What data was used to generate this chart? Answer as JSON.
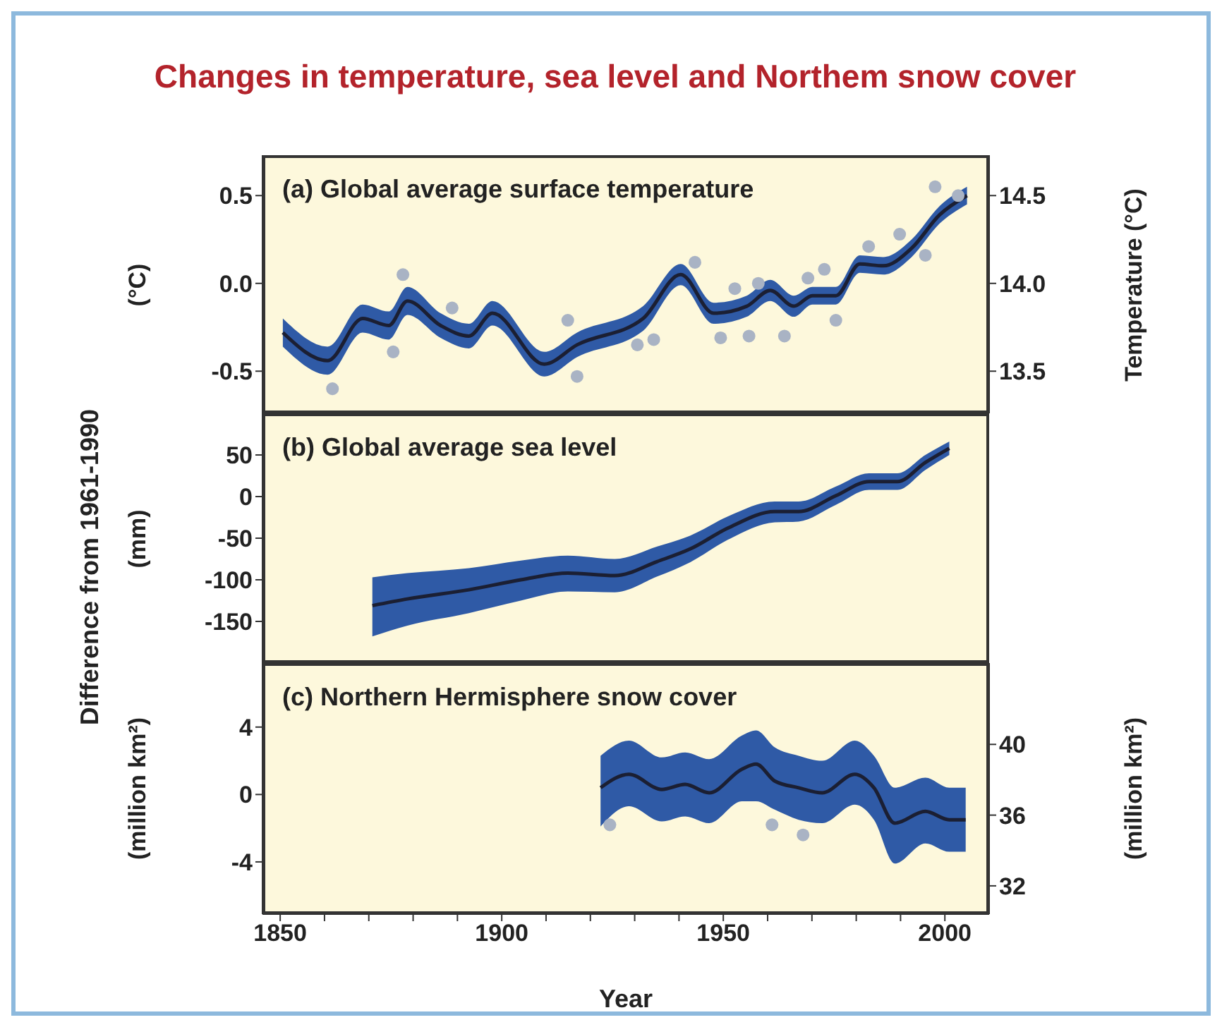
{
  "chart_data": [
    {
      "type": "line",
      "title": "Changes in temperature, sea level and Northem snow cover",
      "subtitle": "(a) Global average surface temperature",
      "ylabel": "(°C)",
      "y2label": "Temperature (°C)",
      "tick_labels": "y",
      "xlim": [
        1846,
        2010
      ],
      "xticks": [
        1850,
        {
          "value": 1860,
          "label": null
        },
        {
          "value": 1870,
          "label": null
        },
        {
          "value": 1880,
          "label": null
        },
        {
          "value": 1890,
          "label": null
        },
        1900,
        {
          "value": 1910,
          "label": null
        },
        {
          "value": 1920,
          "label": null
        },
        {
          "value": 1930,
          "label": null
        },
        {
          "value": 1940,
          "label": null
        },
        1950,
        {
          "value": 1960,
          "label": null
        },
        {
          "value": 1970,
          "label": null
        },
        {
          "value": 1980,
          "label": null
        },
        {
          "value": 1990,
          "label": null
        },
        2000
      ],
      "ylim": [
        -0.74,
        0.73
      ],
      "yticks": [
        {
          "value": 0.5,
          "label": "0.5"
        },
        {
          "value": 0,
          "label": "0.0"
        },
        {
          "value": -0.5,
          "label": "-0.5"
        }
      ],
      "y2lim": [
        13.26,
        14.73
      ],
      "y2ticks": [
        {
          "value": 14.5,
          "label": "14.5"
        },
        {
          "value": 14,
          "label": "14.0"
        },
        {
          "value": 13.5,
          "label": "13.5"
        }
      ],
      "series": [
        {
          "type": "line",
          "color": "#1b1f33",
          "x": [
            1850.6,
            1860.7,
            1868.6,
            1874.5,
            1878.7,
            1886.2,
            1892.6,
            1897.9,
            1909.6,
            1917,
            1931.9,
            1940.4,
            1947.8,
            1955.3,
            1960.6,
            1965.9,
            1970.1,
            1975.4,
            1980.8,
            1986.1,
            1992.5,
            1998.8,
            2005
          ],
          "values": [
            -0.28,
            -0.44,
            -0.2,
            -0.24,
            -0.1,
            -0.24,
            -0.3,
            -0.17,
            -0.46,
            -0.35,
            -0.2,
            0.05,
            -0.17,
            -0.13,
            -0.04,
            -0.13,
            -0.07,
            -0.07,
            0.11,
            0.1,
            0.2,
            0.39,
            0.5
          ],
          "lower": [
            -0.36,
            -0.52,
            -0.28,
            -0.32,
            -0.18,
            -0.31,
            -0.37,
            -0.24,
            -0.53,
            -0.42,
            -0.27,
            -0.01,
            -0.23,
            -0.19,
            -0.1,
            -0.19,
            -0.12,
            -0.12,
            0.06,
            0.05,
            0.15,
            0.34,
            0.45
          ],
          "upper": [
            -0.2,
            -0.36,
            -0.12,
            -0.16,
            -0.02,
            -0.17,
            -0.23,
            -0.1,
            -0.39,
            -0.28,
            -0.13,
            0.11,
            -0.11,
            -0.07,
            0.02,
            -0.07,
            -0.02,
            -0.02,
            0.16,
            0.15,
            0.25,
            0.44,
            0.55
          ]
        },
        {
          "type": "scatter",
          "color": "#a9b3c4",
          "x": [
            1861.8,
            1875.5,
            1877.7,
            1888.8,
            1914.9,
            1917,
            1930.6,
            1934.3,
            1943.6,
            1949.4,
            1952.6,
            1955.8,
            1957.9,
            1963.8,
            1969.1,
            1972.8,
            1975.4,
            1982.8,
            1989.8,
            1995.6,
            1997.8,
            2003
          ],
          "values": [
            -0.6,
            -0.39,
            0.05,
            -0.14,
            -0.21,
            -0.53,
            -0.35,
            -0.32,
            0.12,
            -0.31,
            -0.03,
            -0.3,
            0.0,
            -0.3,
            0.03,
            0.08,
            -0.21,
            0.21,
            0.28,
            0.16,
            0.55,
            0.5
          ]
        }
      ]
    },
    {
      "type": "line",
      "subtitle": "(b) Global average sea level",
      "ylabel": "(mm)",
      "annotations": [
        "Difference from 1961-1990"
      ],
      "tick_labels": "y",
      "xlim": [
        1846,
        2010
      ],
      "xticks": [
        1850,
        {
          "value": 1860,
          "label": null
        },
        {
          "value": 1870,
          "label": null
        },
        {
          "value": 1880,
          "label": null
        },
        {
          "value": 1890,
          "label": null
        },
        1900,
        {
          "value": 1910,
          "label": null
        },
        {
          "value": 1920,
          "label": null
        },
        {
          "value": 1930,
          "label": null
        },
        {
          "value": 1940,
          "label": null
        },
        1950,
        {
          "value": 1960,
          "label": null
        },
        {
          "value": 1970,
          "label": null
        },
        {
          "value": 1980,
          "label": null
        },
        {
          "value": 1990,
          "label": null
        },
        2000
      ],
      "ylim": [
        -200,
        100
      ],
      "yticks": [
        50,
        0,
        -50,
        -100,
        -150
      ],
      "series": [
        {
          "type": "line",
          "color": "#1b1f33",
          "x": [
            1870.8,
            1878.7,
            1892.6,
            1904.3,
            1914.9,
            1925.5,
            1935.1,
            1942.5,
            1951,
            1961.6,
            1967,
            1975.4,
            1982.9,
            1989.3,
            1995.6,
            2001
          ],
          "values": [
            -131,
            -123,
            -112,
            -100,
            -92,
            -95,
            -78,
            -63,
            -38,
            -18,
            -18,
            1,
            18,
            18,
            41,
            58
          ],
          "lower": [
            -168,
            -155,
            -140,
            -125,
            -114,
            -115,
            -96,
            -79,
            -52,
            -31,
            -30,
            -10,
            8,
            8,
            32,
            50
          ],
          "upper": [
            -97,
            -92,
            -86,
            -77,
            -71,
            -75,
            -60,
            -47,
            -24,
            -6,
            -6,
            12,
            28,
            28,
            50,
            66
          ]
        }
      ]
    },
    {
      "type": "line",
      "subtitle": "(c) Northern Hermisphere snow cover",
      "ylabel": "(million km²)",
      "y2label": "(million km²)",
      "xlabel": "Year",
      "xlim": [
        1846,
        2010
      ],
      "xticks": [
        1850,
        {
          "value": 1860,
          "label": null
        },
        {
          "value": 1870,
          "label": null
        },
        {
          "value": 1880,
          "label": null
        },
        {
          "value": 1890,
          "label": null
        },
        1900,
        {
          "value": 1910,
          "label": null
        },
        {
          "value": 1920,
          "label": null
        },
        {
          "value": 1930,
          "label": null
        },
        {
          "value": 1940,
          "label": null
        },
        1950,
        {
          "value": 1960,
          "label": null
        },
        {
          "value": 1970,
          "label": null
        },
        {
          "value": 1980,
          "label": null
        },
        {
          "value": 1990,
          "label": null
        },
        2000
      ],
      "ylim": [
        -7.1,
        7.8
      ],
      "yticks": [
        4,
        0,
        -4
      ],
      "y2lim": [
        30.4,
        44.6
      ],
      "y2ticks": [
        40,
        36,
        32
      ],
      "series": [
        {
          "type": "line",
          "color": "#1b1f33",
          "x": [
            1922.3,
            1928.7,
            1936.1,
            1941.4,
            1946.8,
            1954.2,
            1957.4,
            1961.6,
            1967,
            1972.3,
            1979.7,
            1984,
            1988.7,
            1995.6,
            2001,
            2004.7
          ],
          "values": [
            0.4,
            1.2,
            0.3,
            0.6,
            0.1,
            1.5,
            1.8,
            0.8,
            0.4,
            0.1,
            1.2,
            0.4,
            -1.7,
            -1.0,
            -1.5,
            -1.5
          ],
          "lower": [
            -1.9,
            -0.7,
            -1.6,
            -1.3,
            -1.7,
            -0.4,
            -0.4,
            -0.9,
            -1.5,
            -1.7,
            -0.6,
            -1.5,
            -4.1,
            -2.9,
            -3.4,
            -3.4
          ],
          "upper": [
            2.3,
            3.2,
            2.2,
            2.5,
            2.1,
            3.5,
            3.8,
            2.8,
            2.3,
            2.0,
            3.2,
            2.3,
            0.4,
            1.0,
            0.4,
            0.4
          ]
        },
        {
          "type": "scatter",
          "color": "#a9b3c4",
          "x": [
            1924.4,
            1961,
            1968
          ],
          "values": [
            -1.8,
            -1.8,
            -2.4
          ]
        }
      ]
    }
  ]
}
